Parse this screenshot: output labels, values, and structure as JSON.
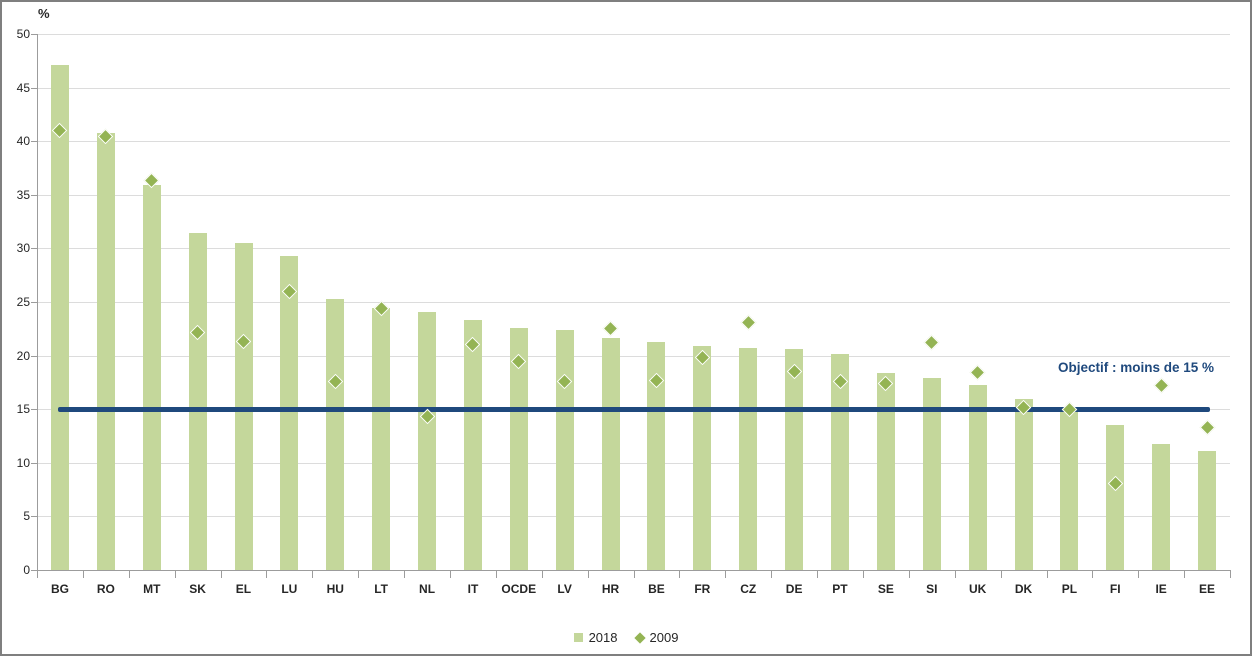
{
  "page": {
    "background": "#ffffff",
    "border_color": "#7f7f7f"
  },
  "chart_data": {
    "type": "bar",
    "title": "",
    "unit_label": "%",
    "xlabel": "",
    "ylabel": "%",
    "ylim": [
      0,
      50
    ],
    "ytick_step": 5,
    "grid": "horizontal",
    "legend_position": "bottom-center",
    "categories": [
      "BG",
      "RO",
      "MT",
      "SK",
      "EL",
      "LU",
      "HU",
      "LT",
      "NL",
      "IT",
      "OCDE",
      "LV",
      "HR",
      "BE",
      "FR",
      "CZ",
      "DE",
      "PT",
      "SE",
      "SI",
      "UK",
      "DK",
      "PL",
      "FI",
      "IE",
      "EE"
    ],
    "series": [
      {
        "name": "2018",
        "style": "bar",
        "color": "#c4d79b",
        "values": [
          47.1,
          40.8,
          35.9,
          31.4,
          30.5,
          29.3,
          25.3,
          24.4,
          24.1,
          23.3,
          22.6,
          22.4,
          21.6,
          21.3,
          20.9,
          20.7,
          20.6,
          20.2,
          18.4,
          17.9,
          17.3,
          16.0,
          14.7,
          13.5,
          11.8,
          11.1
        ]
      },
      {
        "name": "2009",
        "style": "diamond",
        "color": "#94b454",
        "values": [
          41.0,
          40.4,
          36.3,
          22.2,
          21.3,
          26.0,
          17.6,
          24.4,
          14.3,
          21.0,
          19.5,
          17.6,
          22.5,
          17.7,
          19.8,
          23.1,
          18.5,
          17.6,
          17.4,
          21.2,
          18.4,
          15.2,
          15.0,
          8.1,
          17.2,
          13.3
        ]
      }
    ],
    "target_line": {
      "value": 15,
      "label": "Objectif : moins de 15 %",
      "color": "#1f497d"
    }
  }
}
